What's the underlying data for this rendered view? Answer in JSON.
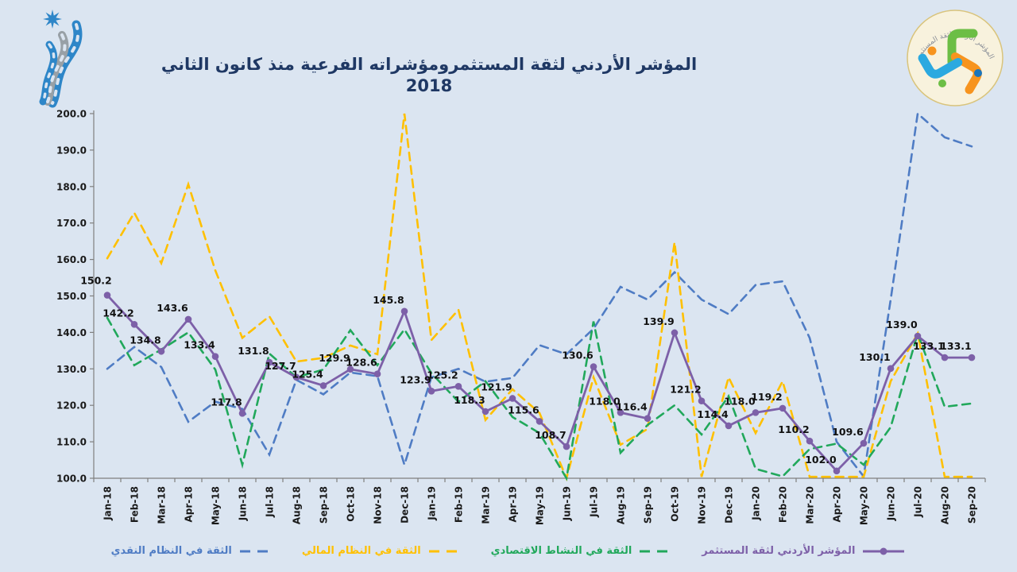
{
  "header": {
    "title": "المؤشر الأردني لثقة المستثمرومؤشراته الفرعية منذ كانون الثاني 2018",
    "right_logo_arc_text": "المؤشر الأردني لثقة المستثمر"
  },
  "colors": {
    "background": "#dbe5f1",
    "title": "#1f3864",
    "axis": "#7f7f7f",
    "monetary_blue": "#4f7cc4",
    "financial_yellow": "#ffc000",
    "economic_green": "#21a85b",
    "index_purple": "#7d60a8",
    "data_label": "#111111"
  },
  "legend": {
    "items": [
      {
        "id": "monetary",
        "label": "الثقة في النظام النقدي",
        "color": "#4f7cc4",
        "style": "dashed"
      },
      {
        "id": "financial",
        "label": "الثقة في النظام المالي",
        "color": "#ffc000",
        "style": "dashed"
      },
      {
        "id": "economic",
        "label": "الثقة في النشاط الاقتصادي",
        "color": "#21a85b",
        "style": "dashed"
      },
      {
        "id": "index",
        "label": "المؤشر الأردني لثقة المستثمر",
        "color": "#7d60a8",
        "style": "solid-marker"
      }
    ]
  },
  "chart_data": {
    "type": "line",
    "title": "المؤشر الأردني لثقة المستثمرومؤشراته الفرعية منذ كانون الثاني 2018",
    "xlabel": "",
    "ylabel": "",
    "ylim": [
      100,
      200
    ],
    "ytick_step": 10,
    "ytick_labels": [
      "100.0",
      "110.0",
      "120.0",
      "130.0",
      "140.0",
      "150.0",
      "160.0",
      "170.0",
      "180.0",
      "190.0",
      "200.0"
    ],
    "grid": false,
    "legend_position": "bottom",
    "x_categories": [
      "Jan-18",
      "Feb-18",
      "Mar-18",
      "Apr-18",
      "May-18",
      "Jun-18",
      "Jul-18",
      "Aug-18",
      "Sep-18",
      "Oct-18",
      "Nov-18",
      "Dec-18",
      "Jan-19",
      "Feb-19",
      "Mar-19",
      "Apr-19",
      "May-19",
      "Jun-19",
      "Jul-19",
      "Aug-19",
      "Sep-19",
      "Oct-19",
      "Nov-19",
      "Dec-19",
      "Jan-20",
      "Feb-20",
      "Mar-20",
      "Apr-20",
      "May-20",
      "Jun-20",
      "Jul-20",
      "Aug-20",
      "Sep-20"
    ],
    "series": [
      {
        "id": "monetary",
        "name": "الثقة في النظام النقدي",
        "style": "dashed",
        "color": "#4f7cc4",
        "estimated": true,
        "values": [
          130,
          136,
          130.5,
          115.5,
          121,
          119,
          106.5,
          127,
          123,
          129,
          128,
          103.7,
          127.7,
          130,
          126.5,
          127.5,
          136.5,
          134,
          141,
          152.5,
          149,
          156.5,
          149,
          145,
          153,
          154,
          138.5,
          110,
          100.5,
          149,
          200,
          193.5,
          191
        ]
      },
      {
        "id": "financial",
        "name": "الثقة في النظام المالي",
        "style": "dashed",
        "color": "#ffc000",
        "estimated": true,
        "values": [
          160.3,
          172.8,
          159,
          180.6,
          157,
          138.5,
          144.4,
          132,
          133,
          136.4,
          134,
          200,
          137.9,
          146.2,
          116,
          124.4,
          117.9,
          100,
          127.7,
          109.2,
          113.5,
          164.7,
          100.4,
          127.7,
          112.4,
          126.6,
          100.4,
          100.4,
          100.4,
          126.6,
          139.7,
          100.4,
          100.4
        ]
      },
      {
        "id": "economic",
        "name": "الثقة في النشاط الاقتصادي",
        "style": "dashed",
        "color": "#21a85b",
        "estimated": true,
        "values": [
          144,
          131,
          135.3,
          140,
          129.8,
          103.7,
          134.2,
          127.7,
          129.8,
          140.6,
          131,
          140.8,
          128.8,
          121,
          126.6,
          116.8,
          112.4,
          100,
          143,
          107,
          114.6,
          120,
          112,
          122.5,
          102.6,
          100.5,
          108,
          109.5,
          103.7,
          114,
          139.7,
          119.6,
          120.5
        ]
      },
      {
        "id": "index",
        "name": "المؤشر الأردني لثقة المستثمر",
        "style": "solid",
        "marker": "circle",
        "color": "#7d60a8",
        "data_labels": true,
        "values": [
          150.2,
          142.2,
          134.8,
          143.6,
          133.4,
          117.8,
          131.8,
          127.7,
          125.4,
          129.9,
          128.6,
          145.8,
          123.9,
          125.2,
          118.3,
          121.9,
          115.6,
          108.7,
          130.6,
          118.0,
          116.4,
          139.9,
          121.2,
          114.4,
          118.0,
          119.2,
          110.2,
          102.0,
          109.6,
          130.1,
          139.0,
          133.1,
          133.1
        ]
      }
    ]
  }
}
